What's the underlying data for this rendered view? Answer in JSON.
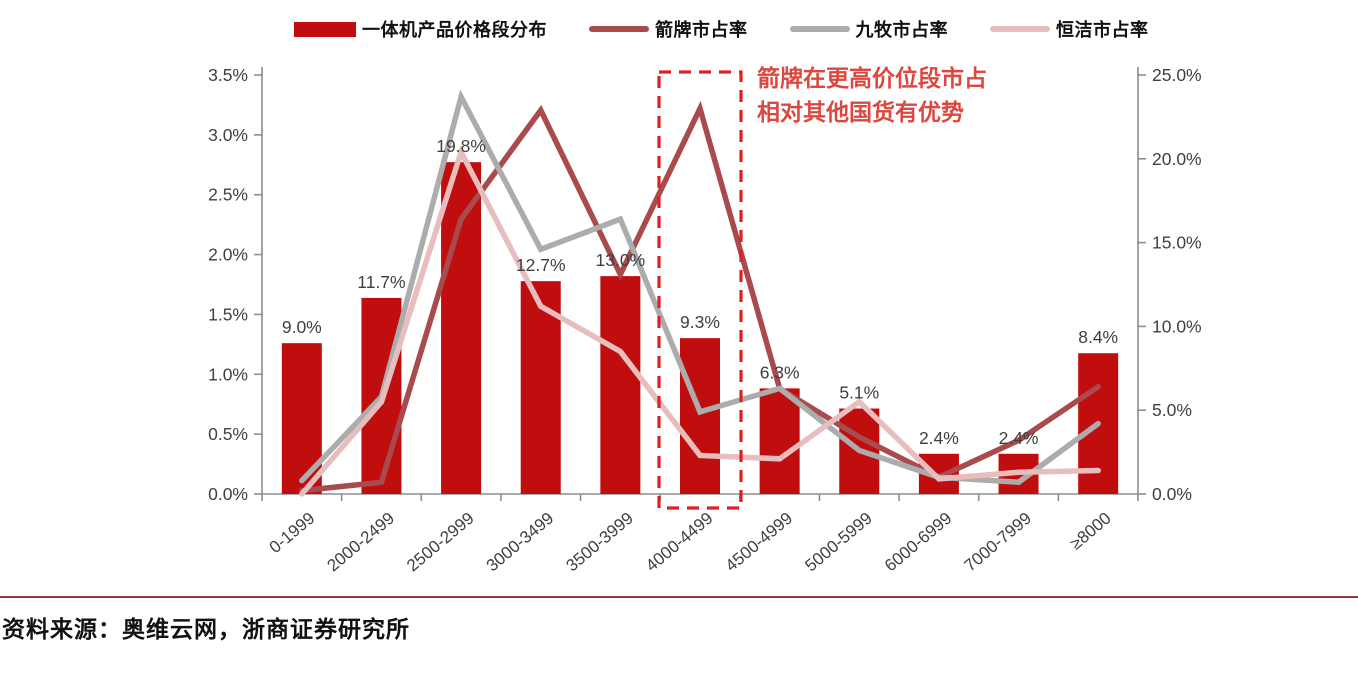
{
  "legend": {
    "items": [
      {
        "label": "一体机产品价格段分布",
        "color": "#C00D0D",
        "type": "bar"
      },
      {
        "label": "箭牌市占率",
        "color": "#A94A4C",
        "type": "line"
      },
      {
        "label": "九牧市占率",
        "color": "#ACACAC",
        "type": "line"
      },
      {
        "label": "恒洁市占率",
        "color": "#E7BDBE",
        "type": "line"
      }
    ]
  },
  "chart_data": {
    "type": "bar+line combo",
    "categories": [
      "0-1999",
      "2000-2499",
      "2500-2999",
      "3000-3499",
      "3500-3999",
      "4000-4499",
      "4500-4999",
      "5000-5999",
      "6000-6999",
      "7000-7999",
      "≥8000"
    ],
    "bar_series": {
      "name": "一体机产品价格段分布",
      "axis": "right",
      "unit": "%",
      "values": [
        9.0,
        11.7,
        19.8,
        12.7,
        13.0,
        9.3,
        6.3,
        5.1,
        2.4,
        2.4,
        8.4
      ],
      "labels": [
        "9.0%",
        "11.7%",
        "19.8%",
        "12.7%",
        "13.0%",
        "9.3%",
        "6.3%",
        "5.1%",
        "2.4%",
        "2.4%",
        "8.4%"
      ],
      "color": "#C00D0D"
    },
    "line_series": [
      {
        "name": "箭牌市占率",
        "axis": "right",
        "unit": "%",
        "values": [
          0.2,
          0.7,
          16.4,
          22.9,
          13.1,
          23.0,
          6.3,
          3.4,
          1.0,
          3.2,
          6.4
        ],
        "color": "#A94A4C"
      },
      {
        "name": "九牧市占率",
        "axis": "right",
        "unit": "%",
        "values": [
          0.8,
          5.8,
          23.7,
          14.6,
          16.4,
          4.9,
          6.3,
          2.6,
          1.0,
          0.7,
          4.2
        ],
        "color": "#ACACAC"
      },
      {
        "name": "恒洁市占率",
        "axis": "right",
        "unit": "%",
        "values": [
          0.0,
          5.5,
          20.4,
          11.2,
          8.5,
          2.3,
          2.1,
          5.5,
          0.9,
          1.3,
          1.4
        ],
        "color": "#E7BDBE"
      }
    ],
    "left_axis": {
      "min": 0,
      "max": 3.5,
      "ticks": [
        "0.0%",
        "0.5%",
        "1.0%",
        "1.5%",
        "2.0%",
        "2.5%",
        "3.0%",
        "3.5%"
      ]
    },
    "right_axis": {
      "min": 0,
      "max": 25,
      "ticks": [
        "0.0%",
        "5.0%",
        "10.0%",
        "15.0%",
        "20.0%",
        "25.0%"
      ]
    },
    "grid": false,
    "legend_position": "top",
    "annotation": {
      "line1": "箭牌在更高价位段市占",
      "line2": "相对其他国货有优势",
      "color": "#DC4840"
    },
    "highlight_box": {
      "category": "4000-4499",
      "color": "#E02020",
      "style": "dashed"
    }
  },
  "source": {
    "text": "资料来源：奥维云网，浙商证券研究所"
  }
}
